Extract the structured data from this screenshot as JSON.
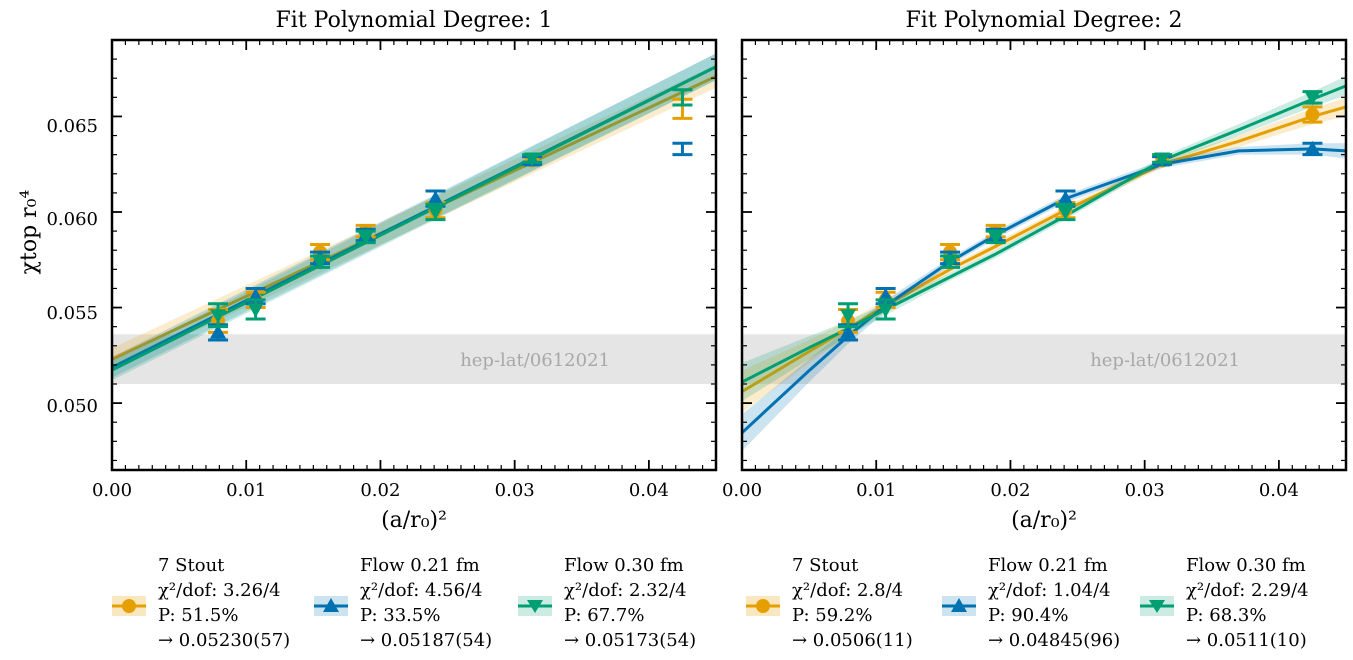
{
  "chart_data": [
    {
      "type": "scatter",
      "title": "Fit Polynomial Degree: 1",
      "xlabel": "(a/r₀)²",
      "ylabel": "χtop r₀⁴",
      "xlim": [
        0.0,
        0.045
      ],
      "ylim": [
        0.0465,
        0.069
      ],
      "x_ticks": [
        "0.00",
        "0.01",
        "0.02",
        "0.03",
        "0.04"
      ],
      "y_ticks": [
        "0.050",
        "0.055",
        "0.060",
        "0.065"
      ],
      "grid": false,
      "reference_band": {
        "label": "hep-lat/0612021",
        "ymin": 0.051,
        "ymax": 0.0536
      },
      "series": [
        {
          "name": "7 Stout",
          "color": "#E69F00",
          "marker": "circle",
          "x": [
            0.0079,
            0.0107,
            0.0155,
            0.0189,
            0.0241,
            0.0313,
            0.0425
          ],
          "y": [
            0.0543,
            0.0554,
            0.0579,
            0.059,
            0.0601,
            0.0627,
            0.0654
          ],
          "yerr": [
            0.0006,
            0.0004,
            0.0004,
            0.0003,
            0.0004,
            0.0002,
            0.0005
          ],
          "fit_x": [
            0.0,
            0.045
          ],
          "fit_y": [
            0.0523,
            0.0671
          ],
          "band_err": [
            0.00057,
            0.0006
          ],
          "legend": [
            "7 Stout",
            "χ²/dof: 3.26/4",
            "P: 51.5%",
            "→ 0.05230(57)"
          ]
        },
        {
          "name": "Flow 0.21 fm",
          "color": "#0072B2",
          "marker": "triangle-up",
          "x": [
            0.0079,
            0.0107,
            0.0155,
            0.0189,
            0.0241,
            0.0313,
            0.0425
          ],
          "y": [
            0.0537,
            0.0556,
            0.0576,
            0.0588,
            0.0607,
            0.0627,
            0.0633
          ],
          "yerr": [
            0.0004,
            0.0004,
            0.0003,
            0.0003,
            0.0004,
            0.0002,
            0.0003
          ],
          "fit_x": [
            0.0,
            0.045
          ],
          "fit_y": [
            0.05187,
            0.0676
          ],
          "band_err": [
            0.00054,
            0.0007
          ],
          "legend": [
            "Flow 0.21 fm",
            "χ²/dof: 4.56/4",
            "P: 33.5%",
            "→ 0.05187(54)"
          ]
        },
        {
          "name": "Flow 0.30 fm",
          "color": "#009E73",
          "marker": "triangle-down",
          "x": [
            0.0079,
            0.0107,
            0.0155,
            0.0189,
            0.0241,
            0.0313,
            0.0425
          ],
          "y": [
            0.0546,
            0.0549,
            0.0574,
            0.0587,
            0.06,
            0.0628,
            0.066
          ],
          "yerr": [
            0.0006,
            0.0005,
            0.0003,
            0.0003,
            0.0004,
            0.0002,
            0.0004
          ],
          "fit_x": [
            0.0,
            0.045
          ],
          "fit_y": [
            0.05173,
            0.0676
          ],
          "band_err": [
            0.00054,
            0.0007
          ],
          "legend": [
            "Flow 0.30 fm",
            "χ²/dof: 2.32/4",
            "P: 67.7%",
            "→ 0.05173(54)"
          ]
        }
      ]
    },
    {
      "type": "scatter",
      "title": "Fit Polynomial Degree: 2",
      "xlabel": "(a/r₀)²",
      "xlim": [
        0.0,
        0.045
      ],
      "ylim": [
        0.0465,
        0.069
      ],
      "x_ticks": [
        "0.00",
        "0.01",
        "0.02",
        "0.03",
        "0.04"
      ],
      "grid": false,
      "reference_band": {
        "label": "hep-lat/0612021",
        "ymin": 0.051,
        "ymax": 0.0536
      },
      "series": [
        {
          "name": "7 Stout",
          "color": "#E69F00",
          "marker": "circle",
          "x": [
            0.0079,
            0.0107,
            0.0155,
            0.0189,
            0.0241,
            0.0313,
            0.0425
          ],
          "y": [
            0.0543,
            0.0554,
            0.0579,
            0.059,
            0.0601,
            0.0627,
            0.0651
          ],
          "yerr": [
            0.0006,
            0.0004,
            0.0004,
            0.0003,
            0.0004,
            0.0002,
            0.0004
          ],
          "fit_x": [
            0.0,
            0.005,
            0.0079,
            0.0107,
            0.0155,
            0.0189,
            0.0241,
            0.0313,
            0.037,
            0.0425,
            0.045
          ],
          "fit_y": [
            0.0506,
            0.0527,
            0.0539,
            0.0551,
            0.057,
            0.0582,
            0.0601,
            0.0625,
            0.0637,
            0.065,
            0.0655
          ],
          "band_err": [
            0.0011,
            0.0006,
            0.0004,
            0.0003,
            0.0002,
            0.0002,
            0.0002,
            0.0002,
            0.0003,
            0.0004,
            0.0005
          ],
          "legend": [
            "7 Stout",
            "χ²/dof: 2.8/4",
            "P: 59.2%",
            "→ 0.0506(11)"
          ]
        },
        {
          "name": "Flow 0.21 fm",
          "color": "#0072B2",
          "marker": "triangle-up",
          "x": [
            0.0079,
            0.0107,
            0.0155,
            0.0189,
            0.0241,
            0.0313,
            0.0425
          ],
          "y": [
            0.0537,
            0.0556,
            0.0576,
            0.0588,
            0.0607,
            0.0627,
            0.0633
          ],
          "yerr": [
            0.0004,
            0.0004,
            0.0003,
            0.0003,
            0.0004,
            0.0002,
            0.0003
          ],
          "fit_x": [
            0.0,
            0.005,
            0.0079,
            0.0107,
            0.0155,
            0.0189,
            0.0241,
            0.0313,
            0.037,
            0.0425,
            0.045
          ],
          "fit_y": [
            0.04845,
            0.0517,
            0.0535,
            0.0551,
            0.0574,
            0.0588,
            0.0607,
            0.0625,
            0.0632,
            0.0633,
            0.0632
          ],
          "band_err": [
            0.00096,
            0.0006,
            0.0004,
            0.0003,
            0.0002,
            0.0002,
            0.0002,
            0.0002,
            0.0002,
            0.0003,
            0.0004
          ],
          "legend": [
            "Flow 0.21 fm",
            "χ²/dof: 1.04/4",
            "P: 90.4%",
            "→ 0.04845(96)"
          ]
        },
        {
          "name": "Flow 0.30 fm",
          "color": "#009E73",
          "marker": "triangle-down",
          "x": [
            0.0079,
            0.0107,
            0.0155,
            0.0189,
            0.0241,
            0.0313,
            0.0425
          ],
          "y": [
            0.0546,
            0.0549,
            0.0574,
            0.0587,
            0.06,
            0.0628,
            0.066
          ],
          "yerr": [
            0.0006,
            0.0005,
            0.0003,
            0.0003,
            0.0004,
            0.0002,
            0.0003
          ],
          "fit_x": [
            0.0,
            0.005,
            0.0079,
            0.0107,
            0.0155,
            0.0189,
            0.0241,
            0.0313,
            0.037,
            0.0425,
            0.045
          ],
          "fit_y": [
            0.0511,
            0.0529,
            0.0539,
            0.0549,
            0.0566,
            0.0578,
            0.0598,
            0.0627,
            0.0643,
            0.0659,
            0.0666
          ],
          "band_err": [
            0.001,
            0.0006,
            0.0004,
            0.0003,
            0.0002,
            0.0002,
            0.0002,
            0.0002,
            0.0003,
            0.0004,
            0.0005
          ],
          "legend": [
            "Flow 0.30 fm",
            "χ²/dof: 2.29/4",
            "P: 68.3%",
            "→ 0.0511(10)"
          ]
        }
      ]
    }
  ]
}
